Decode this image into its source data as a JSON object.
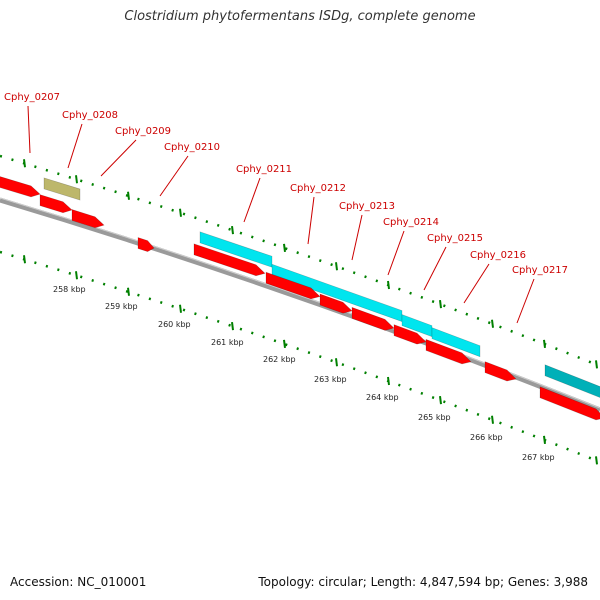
{
  "title": "Clostridium phytofermentans ISDg, complete genome",
  "footer": {
    "accession": "Accession: NC_010001",
    "summary": "Topology: circular; Length: 4,847,594 bp; Genes: 3,988"
  },
  "colors": {
    "backbone": "#808080",
    "gene": "#ff0000",
    "rna_like": "#00e5ee",
    "rna_like_dark": "#00b0b8",
    "other": "#bdb76b",
    "ticks": "#008000",
    "label": "#cc0000",
    "scale_text": "#222222"
  },
  "scale_labels": [
    "258 kbp",
    "259 kbp",
    "260 kbp",
    "261 kbp",
    "262 kbp",
    "263 kbp",
    "264 kbp",
    "265 kbp",
    "266 kbp",
    "267 kbp"
  ],
  "gene_labels": [
    "Cphy_0207",
    "Cphy_0208",
    "Cphy_0209",
    "Cphy_0210",
    "Cphy_0211",
    "Cphy_0212",
    "Cphy_0213",
    "Cphy_0214",
    "Cphy_0215",
    "Cphy_0216",
    "Cphy_0217"
  ]
}
